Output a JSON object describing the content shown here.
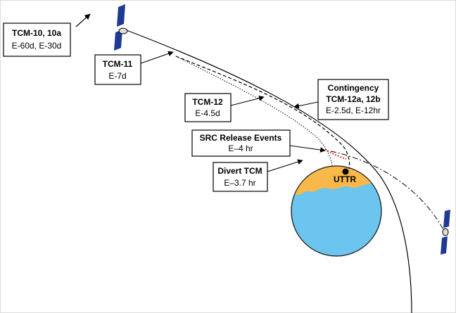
{
  "boxes": [
    {
      "title": "TCM-10, 10a",
      "lines": [
        "E-60d, E-30d"
      ]
    },
    {
      "title": "TCM-11",
      "lines": [
        "E-7d"
      ]
    },
    {
      "title": "TCM-12",
      "lines": [
        "E-4.5d"
      ]
    },
    {
      "title": "Contingency",
      "lines": [
        "TCM-12a, 12b",
        "E-2.5d, E-12hr"
      ]
    },
    {
      "title": "SRC Release Events",
      "lines": [
        "E–4 hr"
      ]
    },
    {
      "title": "Divert TCM",
      "lines": [
        "E–3.7 hr"
      ]
    }
  ],
  "earth": {
    "label": "UTTR"
  }
}
